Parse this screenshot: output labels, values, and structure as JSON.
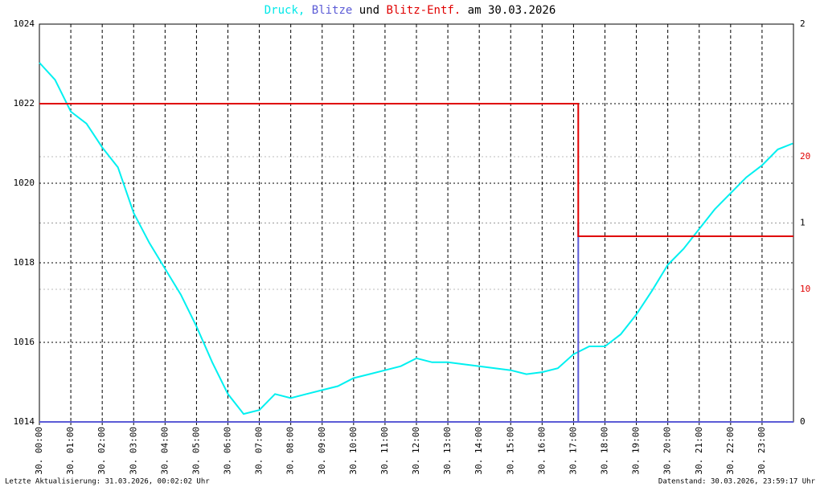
{
  "chart_data": {
    "type": "line",
    "title_parts": [
      {
        "text": "Druck,",
        "color": "#00e8e8"
      },
      {
        "text": "Blitze",
        "color": "#5b5bd6"
      },
      {
        "text": "und",
        "color": "#000000"
      },
      {
        "text": "Blitz-Entf.",
        "color": "#e00000"
      },
      {
        "text": "am 30.03.2026",
        "color": "#000000"
      }
    ],
    "footer_left": "Letzte Aktualisierung: 31.03.2026, 00:02:02 Uhr",
    "footer_right": "Datenstand: 30.03.2026, 23:59:17 Uhr",
    "xlim": [
      0,
      24
    ],
    "xticks": [
      {
        "value": 0,
        "label": "30. 00:00"
      },
      {
        "value": 1,
        "label": "30. 01:00"
      },
      {
        "value": 2,
        "label": "30. 02:00"
      },
      {
        "value": 3,
        "label": "30. 03:00"
      },
      {
        "value": 4,
        "label": "30. 04:00"
      },
      {
        "value": 5,
        "label": "30. 05:00"
      },
      {
        "value": 6,
        "label": "30. 06:00"
      },
      {
        "value": 7,
        "label": "30. 07:00"
      },
      {
        "value": 8,
        "label": "30. 08:00"
      },
      {
        "value": 9,
        "label": "30. 09:00"
      },
      {
        "value": 10,
        "label": "30. 10:00"
      },
      {
        "value": 11,
        "label": "30. 11:00"
      },
      {
        "value": 12,
        "label": "30. 12:00"
      },
      {
        "value": 13,
        "label": "30. 13:00"
      },
      {
        "value": 14,
        "label": "30. 14:00"
      },
      {
        "value": 15,
        "label": "30. 15:00"
      },
      {
        "value": 16,
        "label": "30. 16:00"
      },
      {
        "value": 17,
        "label": "30. 17:00"
      },
      {
        "value": 18,
        "label": "30. 18:00"
      },
      {
        "value": 19,
        "label": "30. 19:00"
      },
      {
        "value": 20,
        "label": "30. 20:00"
      },
      {
        "value": 21,
        "label": "30. 21:00"
      },
      {
        "value": 22,
        "label": "30. 22:00"
      },
      {
        "value": 23,
        "label": "30. 23:00"
      }
    ],
    "ylim": [
      1014,
      1024
    ],
    "yticks": [
      1014,
      1016,
      1018,
      1020,
      1022,
      1024
    ],
    "y2lim": [
      0,
      2
    ],
    "y2ticks": [
      0,
      1,
      2
    ],
    "y3lim": [
      0,
      30
    ],
    "y3ticks": [
      10,
      20
    ],
    "y3color": "#e00000",
    "grid": true,
    "series": [
      {
        "name": "Druck",
        "color": "#00f0f0",
        "axis": "y",
        "x": [
          0,
          0.5,
          1,
          1.5,
          2,
          2.5,
          3,
          3.5,
          4,
          4.5,
          5,
          5.5,
          6,
          6.5,
          7,
          7.5,
          8,
          8.5,
          9,
          9.5,
          10,
          10.5,
          11,
          11.5,
          12,
          12.5,
          13,
          13.5,
          14,
          14.5,
          15,
          15.5,
          16,
          16.5,
          17,
          17.5,
          18,
          18.5,
          19,
          19.5,
          20,
          20.5,
          21,
          21.5,
          22,
          22.5,
          23,
          23.5,
          23.98
        ],
        "values": [
          1023.03,
          1022.6,
          1021.8,
          1021.5,
          1020.9,
          1020.4,
          1019.25,
          1018.5,
          1017.85,
          1017.2,
          1016.4,
          1015.5,
          1014.7,
          1014.2,
          1014.3,
          1014.7,
          1014.6,
          1014.7,
          1014.8,
          1014.9,
          1015.1,
          1015.2,
          1015.3,
          1015.4,
          1015.6,
          1015.5,
          1015.5,
          1015.45,
          1015.4,
          1015.35,
          1015.3,
          1015.2,
          1015.25,
          1015.35,
          1015.7,
          1015.9,
          1015.9,
          1016.2,
          1016.7,
          1017.3,
          1017.95,
          1018.35,
          1018.85,
          1019.35,
          1019.75,
          1020.15,
          1020.45,
          1020.85,
          1021.0
        ]
      },
      {
        "name": "Blitze",
        "color": "#5b5bd6",
        "axis": "y2",
        "x": [
          0,
          17.15,
          17.15,
          17.15,
          24
        ],
        "values": [
          0,
          0,
          1,
          0,
          0
        ]
      },
      {
        "name": "Blitz-Entf.",
        "color": "#e00000",
        "axis": "y3",
        "x": [
          0,
          17.15,
          17.15,
          24
        ],
        "values": [
          24,
          24,
          14,
          14
        ]
      }
    ]
  }
}
